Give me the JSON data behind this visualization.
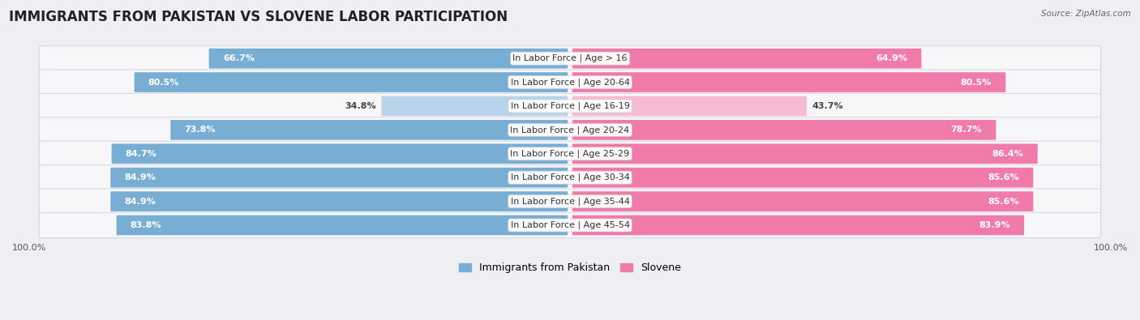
{
  "title": "IMMIGRANTS FROM PAKISTAN VS SLOVENE LABOR PARTICIPATION",
  "source": "Source: ZipAtlas.com",
  "categories": [
    "In Labor Force | Age > 16",
    "In Labor Force | Age 20-64",
    "In Labor Force | Age 16-19",
    "In Labor Force | Age 20-24",
    "In Labor Force | Age 25-29",
    "In Labor Force | Age 30-34",
    "In Labor Force | Age 35-44",
    "In Labor Force | Age 45-54"
  ],
  "pakistan_values": [
    66.7,
    80.5,
    34.8,
    73.8,
    84.7,
    84.9,
    84.9,
    83.8
  ],
  "slovene_values": [
    64.9,
    80.5,
    43.7,
    78.7,
    86.4,
    85.6,
    85.6,
    83.9
  ],
  "pakistan_color": "#78aed4",
  "pakistan_color_light": "#b8d4ea",
  "slovene_color": "#f07aaa",
  "slovene_color_light": "#f5bcd4",
  "background_color": "#eeeef3",
  "row_bg_color": "#f7f7fa",
  "row_border_color": "#d8d8e0",
  "max_value": 100.0,
  "legend_pakistan": "Immigrants from Pakistan",
  "legend_slovene": "Slovene",
  "title_fontsize": 12,
  "label_fontsize": 8,
  "value_fontsize": 8,
  "axis_label_fontsize": 8,
  "light_rows": [
    "In Labor Force | Age 16-19"
  ]
}
